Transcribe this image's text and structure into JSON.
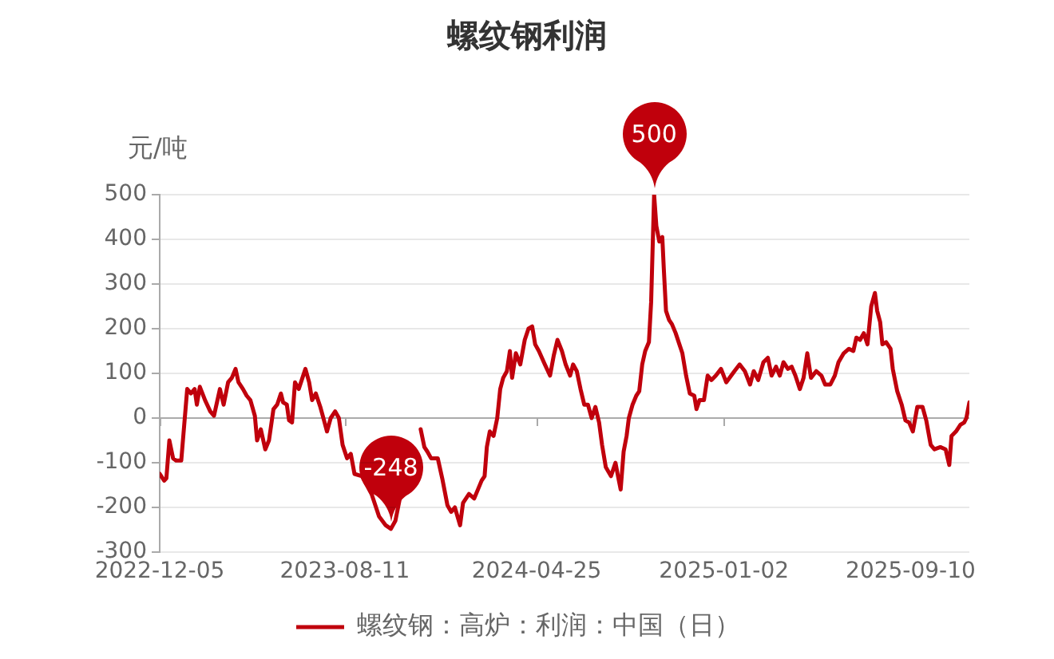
{
  "chart_data": {
    "type": "line",
    "title": "螺纹钢利润",
    "ylabel": "元/吨",
    "x": [
      "2022-12-05",
      "2022-12-11",
      "2022-12-14",
      "2022-12-18",
      "2022-12-23",
      "2022-12-27",
      "2023-01-03",
      "2023-01-06",
      "2023-01-11",
      "2023-01-16",
      "2023-01-21",
      "2023-01-24",
      "2023-01-28",
      "2023-02-04",
      "2023-02-11",
      "2023-02-16",
      "2023-02-24",
      "2023-03-01",
      "2023-03-07",
      "2023-03-12",
      "2023-03-17",
      "2023-03-21",
      "2023-03-27",
      "2023-04-01",
      "2023-04-06",
      "2023-04-12",
      "2023-04-15",
      "2023-04-20",
      "2023-04-26",
      "2023-05-01",
      "2023-05-07",
      "2023-05-12",
      "2023-05-17",
      "2023-05-20",
      "2023-05-25",
      "2023-05-28",
      "2023-06-01",
      "2023-06-05",
      "2023-06-10",
      "2023-06-15",
      "2023-06-19",
      "2023-06-24",
      "2023-06-28",
      "2023-07-03",
      "2023-07-09",
      "2023-07-14",
      "2023-07-18",
      "2023-07-23",
      "2023-07-29",
      "2023-08-03",
      "2023-08-08",
      "2023-08-14",
      "2023-08-19",
      "2023-08-24",
      "2023-09-03",
      "2023-09-16",
      "2023-09-26",
      "2023-10-05",
      "2023-10-12",
      "2023-10-18",
      "2023-10-24",
      "2023-11-02",
      "2023-11-11",
      "2023-11-21",
      "2023-11-26",
      "2023-11-30",
      "2023-12-05",
      "2023-12-14",
      "2023-12-20",
      "2023-12-27",
      "2024-01-01",
      "2024-01-06",
      "2024-01-13",
      "2024-01-17",
      "2024-01-25",
      "2024-02-01",
      "2024-02-06",
      "2024-02-11",
      "2024-02-15",
      "2024-02-18",
      "2024-02-22",
      "2024-02-27",
      "2024-03-03",
      "2024-03-07",
      "2024-03-11",
      "2024-03-16",
      "2024-03-20",
      "2024-03-23",
      "2024-03-28",
      "2024-04-03",
      "2024-04-09",
      "2024-04-14",
      "2024-04-19",
      "2024-04-23",
      "2024-04-28",
      "2024-05-06",
      "2024-05-13",
      "2024-05-18",
      "2024-05-23",
      "2024-05-29",
      "2024-06-03",
      "2024-06-09",
      "2024-06-13",
      "2024-06-18",
      "2024-06-23",
      "2024-06-28",
      "2024-07-03",
      "2024-07-08",
      "2024-07-13",
      "2024-07-18",
      "2024-07-22",
      "2024-07-27",
      "2024-08-03",
      "2024-08-09",
      "2024-08-13",
      "2024-08-16",
      "2024-08-20",
      "2024-08-24",
      "2024-08-27",
      "2024-09-01",
      "2024-09-06",
      "2024-09-10",
      "2024-09-14",
      "2024-09-18",
      "2024-09-23",
      "2024-09-26",
      "2024-09-30",
      "2024-10-03",
      "2024-10-07",
      "2024-10-11",
      "2024-10-13",
      "2024-10-16",
      "2024-10-20",
      "2024-10-24",
      "2024-10-29",
      "2024-11-03",
      "2024-11-07",
      "2024-11-12",
      "2024-11-17",
      "2024-11-23",
      "2024-11-26",
      "2024-11-30",
      "2024-12-06",
      "2024-12-11",
      "2024-12-16",
      "2024-12-22",
      "2024-12-29",
      "2025-01-05",
      "2025-01-16",
      "2025-01-23",
      "2025-01-30",
      "2025-02-06",
      "2025-02-11",
      "2025-02-17",
      "2025-02-24",
      "2025-03-02",
      "2025-03-07",
      "2025-03-13",
      "2025-03-18",
      "2025-03-23",
      "2025-03-29",
      "2025-04-03",
      "2025-04-08",
      "2025-04-14",
      "2025-04-19",
      "2025-04-24",
      "2025-04-29",
      "2025-05-06",
      "2025-05-13",
      "2025-05-18",
      "2025-05-25",
      "2025-05-31",
      "2025-06-05",
      "2025-06-12",
      "2025-06-19",
      "2025-06-25",
      "2025-06-29",
      "2025-07-04",
      "2025-07-09",
      "2025-07-14",
      "2025-07-19",
      "2025-07-24",
      "2025-07-27",
      "2025-07-31",
      "2025-08-03",
      "2025-08-08",
      "2025-08-14",
      "2025-08-17",
      "2025-08-23",
      "2025-08-29",
      "2025-09-03",
      "2025-09-08",
      "2025-09-13",
      "2025-09-19",
      "2025-09-26",
      "2025-10-01",
      "2025-10-07",
      "2025-10-12",
      "2025-10-20",
      "2025-10-27",
      "2025-11-01",
      "2025-11-04",
      "2025-11-10",
      "2025-11-16",
      "2025-11-21",
      "2025-11-24",
      "2025-11-28"
    ],
    "series": [
      {
        "name": "螺纹钢：高炉：利润：中国（日）",
        "color": "#c0000c",
        "values": [
          -125,
          -140,
          -135,
          -50,
          -90,
          -95,
          -95,
          -35,
          65,
          55,
          65,
          30,
          70,
          40,
          15,
          5,
          65,
          30,
          80,
          90,
          110,
          80,
          65,
          50,
          40,
          5,
          -50,
          -25,
          -70,
          -50,
          20,
          30,
          55,
          35,
          30,
          -5,
          -10,
          80,
          65,
          90,
          110,
          80,
          40,
          55,
          25,
          -5,
          -30,
          0,
          15,
          0,
          -60,
          -90,
          -80,
          -125,
          -130,
          -170,
          -220,
          -240,
          -248,
          -230,
          -180,
          null,
          null,
          -25,
          -65,
          -75,
          -90,
          -90,
          -135,
          -195,
          -210,
          -200,
          -240,
          -190,
          -170,
          -180,
          -160,
          -140,
          -130,
          -65,
          -30,
          -40,
          0,
          65,
          90,
          105,
          150,
          90,
          145,
          120,
          175,
          200,
          205,
          165,
          150,
          120,
          95,
          140,
          175,
          150,
          120,
          95,
          120,
          105,
          65,
          30,
          30,
          0,
          25,
          -10,
          -60,
          -110,
          -130,
          -100,
          -135,
          -160,
          -75,
          -40,
          0,
          30,
          50,
          60,
          120,
          150,
          170,
          260,
          500,
          430,
          395,
          405,
          335,
          240,
          220,
          210,
          190,
          165,
          145,
          95,
          55,
          50,
          20,
          40,
          40,
          95,
          85,
          95,
          110,
          80,
          105,
          120,
          105,
          75,
          105,
          85,
          125,
          135,
          95,
          115,
          95,
          125,
          110,
          115,
          95,
          65,
          90,
          145,
          90,
          105,
          95,
          75,
          75,
          95,
          125,
          145,
          155,
          150,
          180,
          175,
          190,
          165,
          250,
          280,
          240,
          215,
          165,
          170,
          155,
          110,
          60,
          30,
          -5,
          -10,
          -30,
          25,
          25,
          -5,
          -60,
          -70,
          -65,
          -70,
          -105,
          -40,
          -30,
          -15,
          -10,
          0,
          35
        ]
      }
    ],
    "xlim": [
      "2022-12-05",
      "2025-11-28"
    ],
    "xticks": [
      "2022-12-05",
      "2023-08-11",
      "2024-04-25",
      "2025-01-02",
      "2025-09-10"
    ],
    "ylim": [
      -300,
      500
    ],
    "yticks": [
      -300,
      -200,
      -100,
      0,
      100,
      200,
      300,
      400,
      500
    ],
    "grid": "y",
    "legend": "bottom",
    "annotations": [
      {
        "text": "500",
        "x": "2024-09-30",
        "y": 500
      },
      {
        "text": "-248",
        "x": "2023-10-12",
        "y": -248
      }
    ]
  }
}
